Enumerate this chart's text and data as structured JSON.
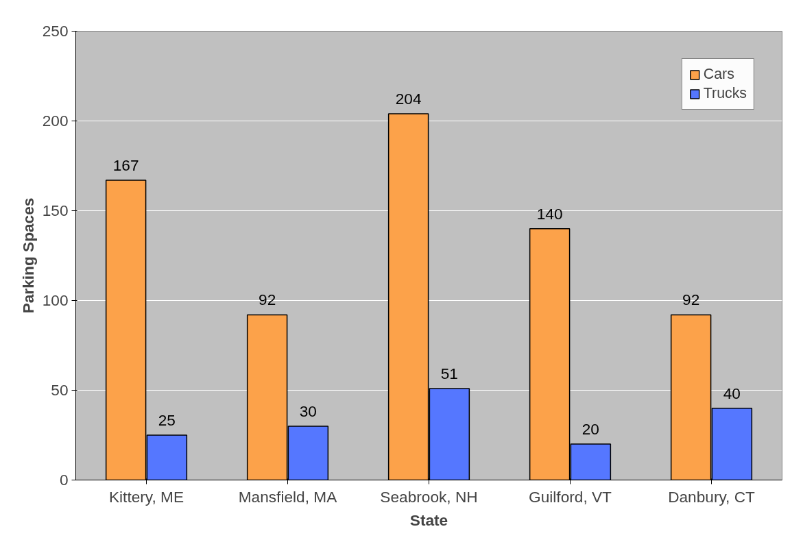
{
  "chart_data": {
    "type": "bar",
    "xlabel": "State",
    "ylabel": "Parking Spaces",
    "categories": [
      "Kittery, ME",
      "Mansfield, MA",
      "Seabrook, NH",
      "Guilford, VT",
      "Danbury, CT"
    ],
    "series": [
      {
        "name": "Cars",
        "color": "#fca24a",
        "values": [
          167,
          92,
          204,
          140,
          92
        ]
      },
      {
        "name": "Trucks",
        "color": "#5577ff",
        "values": [
          25,
          30,
          51,
          20,
          40
        ]
      }
    ],
    "ylim": [
      0,
      250
    ],
    "yticks": [
      0,
      50,
      100,
      150,
      200,
      250
    ],
    "grid": "y",
    "legend": "top right",
    "data_labels": true
  }
}
